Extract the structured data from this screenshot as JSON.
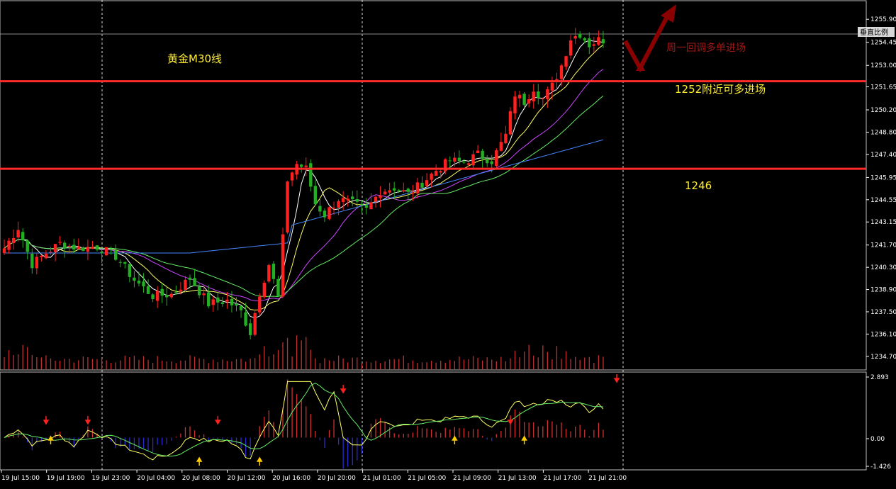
{
  "chart_data": {
    "type": "candlestick",
    "title": "黄金M30线",
    "annotations": {
      "arrow_text": "周一回调多单进场",
      "level_high_text": "1252附近可多进场",
      "level_low_text": "1246"
    },
    "levels": [
      1252.0,
      1246.5
    ],
    "price_axis": {
      "range": [
        1234.2,
        1256.8
      ],
      "ticks": [
        1255.9,
        1254.45,
        1253.0,
        1251.65,
        1250.2,
        1248.8,
        1247.4,
        1245.95,
        1244.55,
        1243.15,
        1241.7,
        1240.3,
        1238.9,
        1237.5,
        1236.1,
        1234.7
      ],
      "current_label": "垂直比例"
    },
    "oscillator_axis": {
      "range": [
        -1.6,
        3.1
      ],
      "ticks": [
        2.893,
        0.0,
        -1.426
      ]
    },
    "x_ticks": [
      "19 Jul 15:00",
      "19 Jul 19:00",
      "19 Jul 23:00",
      "20 Jul 04:00",
      "20 Jul 08:00",
      "20 Jul 12:00",
      "20 Jul 16:00",
      "20 Jul 20:00",
      "21 Jul 01:00",
      "21 Jul 05:00",
      "21 Jul 09:00",
      "21 Jul 13:00",
      "21 Jul 17:00",
      "21 Jul 21:00"
    ],
    "close_path": [
      [
        0,
        1241.5
      ],
      [
        3,
        1242.8
      ],
      [
        6,
        1240.5
      ],
      [
        9,
        1241.2
      ],
      [
        12,
        1241.8
      ],
      [
        16,
        1241.5
      ],
      [
        20,
        1241.6
      ],
      [
        24,
        1241.0
      ],
      [
        28,
        1239.5
      ],
      [
        32,
        1238.5
      ],
      [
        36,
        1238.6
      ],
      [
        40,
        1239.6
      ],
      [
        44,
        1238.0
      ],
      [
        48,
        1238.2
      ],
      [
        51,
        1237.5
      ],
      [
        53,
        1236.2
      ],
      [
        55,
        1238.7
      ],
      [
        57,
        1240.5
      ],
      [
        59,
        1238.4
      ],
      [
        61,
        1245.8
      ],
      [
        63,
        1246.8
      ],
      [
        65,
        1246.5
      ],
      [
        67,
        1244.3
      ],
      [
        69,
        1243.6
      ],
      [
        72,
        1244.6
      ],
      [
        75,
        1244.3
      ],
      [
        78,
        1243.9
      ],
      [
        81,
        1245.1
      ],
      [
        84,
        1245.3
      ],
      [
        87,
        1244.9
      ],
      [
        90,
        1245.6
      ],
      [
        93,
        1246.4
      ],
      [
        96,
        1247.0
      ],
      [
        99,
        1246.9
      ],
      [
        102,
        1247.4
      ],
      [
        105,
        1247.0
      ],
      [
        108,
        1248.6
      ],
      [
        110,
        1251.2
      ],
      [
        112,
        1250.7
      ],
      [
        114,
        1251.6
      ],
      [
        116,
        1250.9
      ],
      [
        118,
        1251.7
      ],
      [
        120,
        1253.0
      ],
      [
        122,
        1254.7
      ],
      [
        124,
        1255.0
      ],
      [
        126,
        1254.3
      ],
      [
        128,
        1254.6
      ]
    ],
    "ma_series": [
      {
        "color": "#ffffff",
        "period": 5
      },
      {
        "color": "#ffff66",
        "period": 10
      },
      {
        "color": "#cc44ff",
        "period": 20
      },
      {
        "color": "#66ee66",
        "period": 30
      },
      {
        "color": "#4488ff",
        "period": 60
      }
    ],
    "colors": {
      "bull": "#ff2020",
      "bear": "#22b022",
      "level_line": "#ff2a2a",
      "volume": "#c03030",
      "hist_pos": "#d03030",
      "hist_neg": "#2a2ad0",
      "osc_fast": "#ffff66",
      "osc_slow": "#66ee66",
      "arrow": "#8b0000",
      "signal_up": "#ffcc00",
      "signal_down": "#ff2020"
    }
  }
}
